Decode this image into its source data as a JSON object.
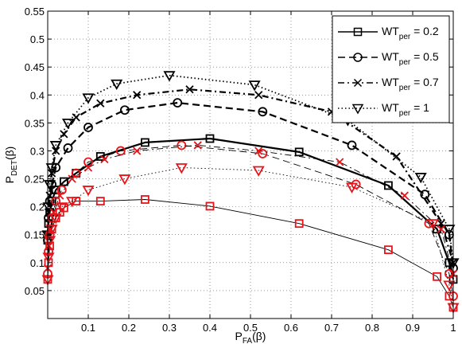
{
  "chart_data": {
    "type": "line",
    "title": "",
    "xlabel": {
      "main": "P",
      "sub": "FA",
      "rest": "(β)"
    },
    "ylabel": {
      "main": "P",
      "sub": "DET",
      "rest": "(β)"
    },
    "xlim": [
      0,
      1
    ],
    "ylim": [
      0,
      0.55
    ],
    "xticks": [
      0.1,
      0.2,
      0.3,
      0.4,
      0.5,
      0.6,
      0.7,
      0.8,
      0.9,
      1
    ],
    "xtick_labels": [
      "0.1",
      "0.2",
      "0.3",
      "0.4",
      "0.5",
      "0.6",
      "0.7",
      "0.8",
      "0.9",
      "1"
    ],
    "yticks": [
      0.05,
      0.1,
      0.15,
      0.2,
      0.25,
      0.3,
      0.35,
      0.4,
      0.45,
      0.5,
      0.55
    ],
    "ytick_labels": [
      "0.05",
      "0.1",
      "0.15",
      "0.2",
      "0.25",
      "0.3",
      "0.35",
      "0.4",
      "0.45",
      "0.5",
      "0.55"
    ],
    "grid": true,
    "grid_style": "dotted",
    "legend_position": "top-right",
    "series": [
      {
        "name": "WT_per = 0.2",
        "legend_main": "WT",
        "legend_sub": "per",
        "legend_rest": " = 0.2",
        "line_style": "solid",
        "line_width": 2.2,
        "marker": "square",
        "color": "#000000",
        "x": [
          0.0,
          0.002,
          0.005,
          0.01,
          0.02,
          0.04,
          0.07,
          0.13,
          0.24,
          0.4,
          0.62,
          0.84,
          0.96,
          0.99,
          1.0
        ],
        "y": [
          0.14,
          0.17,
          0.19,
          0.21,
          0.23,
          0.245,
          0.26,
          0.29,
          0.315,
          0.322,
          0.298,
          0.238,
          0.16,
          0.1,
          0.07
        ]
      },
      {
        "name": "WT_per = 0.5",
        "legend_main": "WT",
        "legend_sub": "per",
        "legend_rest": " = 0.5",
        "line_style": "dashed",
        "line_width": 2.2,
        "marker": "circle",
        "color": "#000000",
        "x": [
          0.0,
          0.002,
          0.005,
          0.01,
          0.02,
          0.05,
          0.1,
          0.19,
          0.32,
          0.53,
          0.75,
          0.93,
          0.99,
          1.0
        ],
        "y": [
          0.14,
          0.18,
          0.21,
          0.24,
          0.27,
          0.305,
          0.342,
          0.373,
          0.386,
          0.37,
          0.31,
          0.222,
          0.15,
          0.09
        ]
      },
      {
        "name": "WT_per = 0.7",
        "legend_main": "WT",
        "legend_sub": "per",
        "legend_rest": " = 0.7",
        "line_style": "dashdot",
        "line_width": 2.2,
        "marker": "x",
        "color": "#000000",
        "x": [
          0.0,
          0.002,
          0.005,
          0.01,
          0.02,
          0.04,
          0.07,
          0.13,
          0.22,
          0.35,
          0.52,
          0.7,
          0.86,
          0.97,
          1.0
        ],
        "y": [
          0.15,
          0.19,
          0.22,
          0.26,
          0.3,
          0.33,
          0.36,
          0.385,
          0.4,
          0.41,
          0.4,
          0.37,
          0.29,
          0.17,
          0.1
        ]
      },
      {
        "name": "WT_per = 1",
        "legend_main": "WT",
        "legend_sub": "per",
        "legend_rest": " = 1",
        "line_style": "dotted",
        "line_width": 1.8,
        "marker": "triangle-down",
        "color": "#000000",
        "x": [
          0.0,
          0.002,
          0.005,
          0.01,
          0.02,
          0.05,
          0.1,
          0.17,
          0.3,
          0.51,
          0.74,
          0.92,
          0.99,
          1.0
        ],
        "y": [
          0.15,
          0.2,
          0.24,
          0.27,
          0.31,
          0.35,
          0.395,
          0.42,
          0.435,
          0.418,
          0.355,
          0.253,
          0.16,
          0.1
        ]
      },
      {
        "name": "",
        "line_style": "solid",
        "line_width": 0.9,
        "marker": "square",
        "color": "#000000",
        "marker_color": "#e8141a",
        "x": [
          0.0,
          0.002,
          0.005,
          0.01,
          0.02,
          0.03,
          0.04,
          0.07,
          0.13,
          0.24,
          0.4,
          0.62,
          0.84,
          0.96,
          0.99,
          1.0
        ],
        "y": [
          0.07,
          0.1,
          0.13,
          0.16,
          0.18,
          0.19,
          0.198,
          0.21,
          0.21,
          0.213,
          0.201,
          0.17,
          0.123,
          0.075,
          0.04,
          0.02
        ]
      },
      {
        "name": "",
        "line_style": "dashed",
        "line_width": 0.9,
        "marker": "circle",
        "color": "#000000",
        "marker_color": "#e8141a",
        "x": [
          0.0,
          0.002,
          0.005,
          0.01,
          0.02,
          0.035,
          0.07,
          0.1,
          0.18,
          0.33,
          0.53,
          0.76,
          0.94,
          0.99,
          1.0
        ],
        "y": [
          0.08,
          0.12,
          0.15,
          0.18,
          0.21,
          0.23,
          0.26,
          0.28,
          0.3,
          0.31,
          0.295,
          0.24,
          0.17,
          0.08,
          0.04
        ]
      },
      {
        "name": "",
        "line_style": "dashdot",
        "line_width": 0.9,
        "marker": "x",
        "color": "#000000",
        "marker_color": "#e8141a",
        "x": [
          0.0,
          0.003,
          0.007,
          0.015,
          0.03,
          0.06,
          0.1,
          0.14,
          0.22,
          0.37,
          0.52,
          0.72,
          0.88,
          0.97,
          1.0
        ],
        "y": [
          0.09,
          0.13,
          0.16,
          0.19,
          0.22,
          0.25,
          0.27,
          0.285,
          0.3,
          0.31,
          0.3,
          0.28,
          0.22,
          0.16,
          0.08
        ]
      },
      {
        "name": "",
        "line_style": "dotted",
        "line_width": 0.9,
        "marker": "triangle-down",
        "color": "#000000",
        "marker_color": "#e8141a",
        "x": [
          0.0,
          0.002,
          0.005,
          0.01,
          0.02,
          0.035,
          0.06,
          0.1,
          0.19,
          0.33,
          0.52,
          0.75,
          0.95,
          0.99,
          1.0
        ],
        "y": [
          0.07,
          0.11,
          0.14,
          0.16,
          0.18,
          0.2,
          0.21,
          0.23,
          0.25,
          0.27,
          0.265,
          0.235,
          0.17,
          0.06,
          0.02
        ]
      }
    ]
  }
}
